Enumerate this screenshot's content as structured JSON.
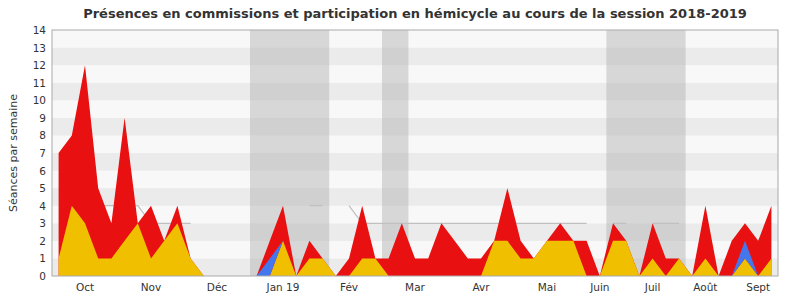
{
  "chart_data": {
    "type": "area",
    "title": "Présences en commissions et participation en hémicycle au cours de la session 2018-2019",
    "y_label": "Séances par semaine",
    "categories": [
      null,
      null,
      "Oct",
      null,
      null,
      null,
      null,
      "Nov",
      null,
      null,
      null,
      null,
      "Déc",
      null,
      null,
      null,
      null,
      "Jan 19",
      null,
      null,
      null,
      null,
      "Fév",
      null,
      null,
      null,
      null,
      "Mar",
      null,
      null,
      null,
      null,
      "Avr",
      null,
      null,
      null,
      null,
      "Mai",
      null,
      null,
      null,
      "Juin",
      null,
      null,
      null,
      "Juil",
      null,
      null,
      null,
      "Août",
      null,
      null,
      null,
      "Sept",
      null
    ],
    "ylim": [
      0,
      14
    ],
    "yticks": [
      0,
      1,
      2,
      3,
      4,
      5,
      6,
      7,
      8,
      9,
      10,
      11,
      12,
      13,
      14
    ],
    "bands": [
      [
        14.5,
        20.5
      ],
      [
        24.5,
        26.5
      ],
      [
        41.5,
        47.5
      ]
    ],
    "band_color": "#b0b0b0",
    "series": [
      {
        "type": "line",
        "color": "#c0c0c0",
        "values": [
          5,
          5,
          4,
          4,
          4,
          4,
          4,
          3,
          3,
          3,
          3,
          null,
          null,
          null,
          null,
          null,
          null,
          null,
          null,
          4,
          4,
          null,
          4,
          3,
          3,
          3,
          3,
          3,
          3,
          3,
          3,
          3,
          3,
          3,
          3,
          3,
          3,
          3,
          3,
          3,
          3,
          null,
          3,
          3,
          null,
          3,
          3,
          3,
          null,
          2,
          null,
          2,
          2,
          2,
          3
        ]
      },
      {
        "type": "area",
        "color": "#e81010",
        "values": [
          7,
          8,
          12,
          5,
          3,
          9,
          3,
          4,
          2,
          4,
          1,
          0,
          0,
          0,
          0,
          0,
          2,
          4,
          0,
          2,
          1,
          0,
          1,
          4,
          1,
          1,
          3,
          1,
          1,
          3,
          2,
          1,
          1,
          2,
          5,
          2,
          1,
          2,
          3,
          2,
          2,
          0,
          3,
          2,
          0,
          3,
          1,
          1,
          0,
          4,
          0,
          2,
          3,
          2,
          4
        ]
      },
      {
        "type": "area",
        "color": "#f0c000",
        "values": [
          1,
          4,
          3,
          1,
          1,
          2,
          3,
          1,
          2,
          3,
          1,
          0,
          0,
          0,
          0,
          0,
          0,
          2,
          0,
          1,
          1,
          0,
          0,
          1,
          1,
          0,
          0,
          0,
          0,
          0,
          0,
          0,
          0,
          2,
          2,
          1,
          1,
          2,
          2,
          2,
          0,
          0,
          2,
          2,
          0,
          1,
          0,
          1,
          0,
          1,
          0,
          0,
          1,
          0,
          1
        ]
      },
      {
        "type": "area",
        "color": "#4477ee",
        "stacked": true,
        "values": [
          0,
          0,
          0,
          0,
          0,
          0,
          0,
          0,
          0,
          0,
          0,
          0,
          0,
          0,
          0,
          0,
          1,
          0,
          0,
          0,
          0,
          0,
          0,
          0,
          0,
          0,
          0,
          0,
          0,
          0,
          0,
          0,
          0,
          0,
          0,
          0,
          0,
          0,
          0,
          0,
          0,
          0,
          0,
          0,
          0,
          0,
          0,
          0,
          0,
          0,
          0,
          0,
          1,
          0,
          0
        ]
      }
    ]
  }
}
